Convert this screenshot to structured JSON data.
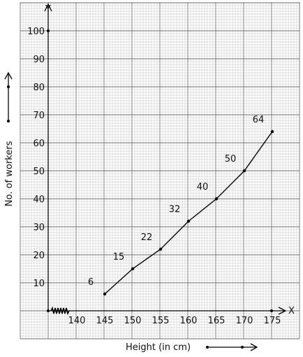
{
  "chart_data": {
    "type": "line",
    "x": [
      145,
      150,
      155,
      160,
      165,
      170,
      175
    ],
    "values": [
      6,
      15,
      22,
      32,
      40,
      50,
      64
    ],
    "data_labels": [
      "6",
      "15",
      "22",
      "32",
      "40",
      "50",
      "64"
    ],
    "xlabel": "Height (in cm)",
    "ylabel": "No. of workers",
    "x_axis_letter": "X",
    "y_axis_letter": "Y",
    "xlim": [
      135,
      175
    ],
    "ylim": [
      0,
      100
    ],
    "x_axis_break": true,
    "x_ticks": [
      "140",
      "145",
      "150",
      "155",
      "160",
      "165",
      "170",
      "175"
    ],
    "y_ticks": [
      "10",
      "20",
      "30",
      "40",
      "50",
      "60",
      "70",
      "80",
      "90",
      "100"
    ],
    "grid": true,
    "colors": {
      "line": "#000000",
      "grid_minor": "#bdbdbd",
      "grid_major": "#707070"
    }
  }
}
